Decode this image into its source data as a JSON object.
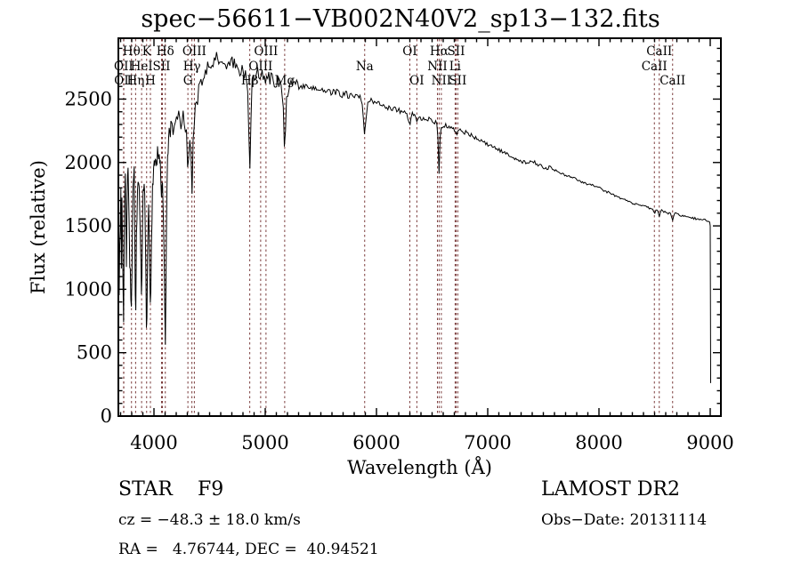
{
  "title": "spec−56611−VB002N40V2_sp13−132.fits",
  "axes": {
    "xlabel": "Wavelength (Å)",
    "ylabel": "Flux (relative)",
    "xticks": [
      4000,
      5000,
      6000,
      7000,
      8000,
      9000
    ],
    "yticks": [
      0,
      500,
      1000,
      1500,
      2000,
      2500
    ],
    "x_minor_step": 100,
    "y_minor_step": 100
  },
  "annotations": {
    "class_label": "STAR    F9",
    "survey": "LAMOST DR2",
    "cz": "cz = −48.3 ± 18.0 km/s",
    "obs_date": "Obs−Date: 20131114",
    "radec": "RA =   4.76744, DEC =  40.94521"
  },
  "colors": {
    "spectrum": "#000000",
    "line_marker": "#7b3c3c",
    "frame": "#000000",
    "background": "#ffffff"
  },
  "chart_data": {
    "type": "line",
    "title": "spec-56611-VB002N40V2_sp13-132.fits",
    "xlabel": "Wavelength (Å)",
    "ylabel": "Flux (relative)",
    "xlim": [
      3680,
      9096
    ],
    "ylim": [
      0,
      2980
    ],
    "grid": false,
    "spectral_lines": [
      {
        "label": "OII",
        "wavelength": 3727,
        "row": 2
      },
      {
        "label": "OII",
        "wavelength": 3729,
        "row": 3
      },
      {
        "label": "Hθ",
        "wavelength": 3798,
        "row": 1
      },
      {
        "label": "Hη",
        "wavelength": 3835,
        "row": 3
      },
      {
        "label": "HeI",
        "wavelength": 3889,
        "row": 2
      },
      {
        "label": "K",
        "wavelength": 3934,
        "row": 1
      },
      {
        "label": "H",
        "wavelength": 3968,
        "row": 3
      },
      {
        "label": "SII",
        "wavelength": 4068,
        "row": 2
      },
      {
        "label": "SII",
        "wavelength": 4076,
        "row": 2,
        "label_hidden": true
      },
      {
        "label": "Hδ",
        "wavelength": 4102,
        "row": 1
      },
      {
        "label": "G",
        "wavelength": 4305,
        "row": 3
      },
      {
        "label": "Hγ",
        "wavelength": 4341,
        "row": 2
      },
      {
        "label": "OIII",
        "wavelength": 4363,
        "row": 1
      },
      {
        "label": "Hβ",
        "wavelength": 4861,
        "row": 3
      },
      {
        "label": "OIII",
        "wavelength": 4959,
        "row": 2
      },
      {
        "label": "OIII",
        "wavelength": 5007,
        "row": 1
      },
      {
        "label": "Mg",
        "wavelength": 5175,
        "row": 3
      },
      {
        "label": "Na",
        "wavelength": 5894,
        "row": 2
      },
      {
        "label": "OI",
        "wavelength": 6300,
        "row": 1
      },
      {
        "label": "OI",
        "wavelength": 6363,
        "row": 3
      },
      {
        "label": "NII",
        "wavelength": 6548,
        "row": 2
      },
      {
        "label": "Hα",
        "wavelength": 6563,
        "row": 1
      },
      {
        "label": "NII",
        "wavelength": 6583,
        "row": 3
      },
      {
        "label": "Li",
        "wavelength": 6707,
        "row": 2
      },
      {
        "label": "SII",
        "wavelength": 6716,
        "row": 1
      },
      {
        "label": "SII",
        "wavelength": 6731,
        "row": 3
      },
      {
        "label": "CaII",
        "wavelength": 8498,
        "row": 2
      },
      {
        "label": "CaII",
        "wavelength": 8542,
        "row": 1
      },
      {
        "label": "CaII",
        "wavelength": 8662,
        "row": 3
      }
    ],
    "anchors": [
      [
        3682,
        1400
      ],
      [
        3686,
        700
      ],
      [
        3690,
        1600
      ],
      [
        3694,
        1000
      ],
      [
        3698,
        1650
      ],
      [
        3702,
        1800
      ],
      [
        3706,
        1000
      ],
      [
        3710,
        1600
      ],
      [
        3714,
        1850
      ],
      [
        3718,
        1250
      ],
      [
        3722,
        1000
      ],
      [
        3727,
        800
      ],
      [
        3732,
        1450
      ],
      [
        3738,
        1800
      ],
      [
        3744,
        1900
      ],
      [
        3752,
        1250
      ],
      [
        3760,
        1800
      ],
      [
        3770,
        1950
      ],
      [
        3780,
        1300
      ],
      [
        3790,
        1000
      ],
      [
        3798,
        750
      ],
      [
        3806,
        1500
      ],
      [
        3814,
        1850
      ],
      [
        3822,
        1900
      ],
      [
        3830,
        1100
      ],
      [
        3835,
        680
      ],
      [
        3842,
        1400
      ],
      [
        3850,
        1700
      ],
      [
        3858,
        1850
      ],
      [
        3866,
        1900
      ],
      [
        3874,
        1500
      ],
      [
        3882,
        1200
      ],
      [
        3889,
        950
      ],
      [
        3896,
        1500
      ],
      [
        3904,
        1800
      ],
      [
        3912,
        1900
      ],
      [
        3920,
        1600
      ],
      [
        3927,
        1100
      ],
      [
        3934,
        600
      ],
      [
        3942,
        1200
      ],
      [
        3950,
        1700
      ],
      [
        3958,
        1400
      ],
      [
        3963,
        1000
      ],
      [
        3968,
        820
      ],
      [
        3976,
        1300
      ],
      [
        3984,
        1700
      ],
      [
        3992,
        1850
      ],
      [
        4000,
        1950
      ],
      [
        4010,
        2050
      ],
      [
        4020,
        1980
      ],
      [
        4030,
        2100
      ],
      [
        4040,
        1950
      ],
      [
        4050,
        2050
      ],
      [
        4060,
        1900
      ],
      [
        4068,
        1750
      ],
      [
        4076,
        1800
      ],
      [
        4085,
        1600
      ],
      [
        4094,
        1100
      ],
      [
        4102,
        600
      ],
      [
        4110,
        1300
      ],
      [
        4118,
        1900
      ],
      [
        4126,
        2100
      ],
      [
        4135,
        2200
      ],
      [
        4145,
        2250
      ],
      [
        4155,
        2300
      ],
      [
        4170,
        2280
      ],
      [
        4185,
        2350
      ],
      [
        4200,
        2330
      ],
      [
        4215,
        2380
      ],
      [
        4230,
        2300
      ],
      [
        4245,
        2350
      ],
      [
        4260,
        2380
      ],
      [
        4275,
        2280
      ],
      [
        4290,
        2200
      ],
      [
        4298,
        2100
      ],
      [
        4305,
        1980
      ],
      [
        4315,
        2150
      ],
      [
        4325,
        2280
      ],
      [
        4333,
        2100
      ],
      [
        4341,
        1620
      ],
      [
        4350,
        2200
      ],
      [
        4358,
        2300
      ],
      [
        4363,
        2250
      ],
      [
        4372,
        2400
      ],
      [
        4382,
        2480
      ],
      [
        4395,
        2550
      ],
      [
        4410,
        2600
      ],
      [
        4430,
        2650
      ],
      [
        4450,
        2700
      ],
      [
        4475,
        2750
      ],
      [
        4500,
        2780
      ],
      [
        4530,
        2800
      ],
      [
        4560,
        2820
      ],
      [
        4590,
        2810
      ],
      [
        4620,
        2820
      ],
      [
        4650,
        2790
      ],
      [
        4680,
        2800
      ],
      [
        4710,
        2780
      ],
      [
        4740,
        2760
      ],
      [
        4770,
        2740
      ],
      [
        4800,
        2720
      ],
      [
        4820,
        2680
      ],
      [
        4840,
        2600
      ],
      [
        4852,
        2300
      ],
      [
        4861,
        1900
      ],
      [
        4872,
        2350
      ],
      [
        4880,
        2600
      ],
      [
        4895,
        2680
      ],
      [
        4910,
        2700
      ],
      [
        4925,
        2720
      ],
      [
        4940,
        2700
      ],
      [
        4959,
        2680
      ],
      [
        4975,
        2700
      ],
      [
        4990,
        2690
      ],
      [
        5007,
        2660
      ],
      [
        5025,
        2680
      ],
      [
        5045,
        2650
      ],
      [
        5065,
        2660
      ],
      [
        5085,
        2640
      ],
      [
        5105,
        2650
      ],
      [
        5125,
        2620
      ],
      [
        5145,
        2600
      ],
      [
        5160,
        2500
      ],
      [
        5175,
        2000
      ],
      [
        5190,
        2450
      ],
      [
        5205,
        2600
      ],
      [
        5225,
        2620
      ],
      [
        5250,
        2600
      ],
      [
        5275,
        2620
      ],
      [
        5300,
        2600
      ],
      [
        5330,
        2610
      ],
      [
        5360,
        2590
      ],
      [
        5390,
        2600
      ],
      [
        5420,
        2580
      ],
      [
        5450,
        2590
      ],
      [
        5480,
        2570
      ],
      [
        5510,
        2580
      ],
      [
        5540,
        2560
      ],
      [
        5570,
        2570
      ],
      [
        5600,
        2550
      ],
      [
        5640,
        2560
      ],
      [
        5680,
        2540
      ],
      [
        5720,
        2540
      ],
      [
        5760,
        2530
      ],
      [
        5800,
        2530
      ],
      [
        5840,
        2520
      ],
      [
        5870,
        2480
      ],
      [
        5894,
        2180
      ],
      [
        5915,
        2450
      ],
      [
        5940,
        2490
      ],
      [
        5970,
        2480
      ],
      [
        6000,
        2470
      ],
      [
        6040,
        2460
      ],
      [
        6080,
        2440
      ],
      [
        6120,
        2430
      ],
      [
        6160,
        2420
      ],
      [
        6200,
        2410
      ],
      [
        6240,
        2400
      ],
      [
        6270,
        2380
      ],
      [
        6300,
        2300
      ],
      [
        6320,
        2380
      ],
      [
        6340,
        2370
      ],
      [
        6363,
        2320
      ],
      [
        6385,
        2360
      ],
      [
        6410,
        2350
      ],
      [
        6440,
        2340
      ],
      [
        6470,
        2340
      ],
      [
        6500,
        2330
      ],
      [
        6525,
        2320
      ],
      [
        6545,
        2300
      ],
      [
        6556,
        2150
      ],
      [
        6563,
        1880
      ],
      [
        6572,
        2200
      ],
      [
        6583,
        2280
      ],
      [
        6600,
        2300
      ],
      [
        6625,
        2290
      ],
      [
        6650,
        2280
      ],
      [
        6675,
        2270
      ],
      [
        6700,
        2260
      ],
      [
        6716,
        2220
      ],
      [
        6731,
        2230
      ],
      [
        6750,
        2250
      ],
      [
        6780,
        2240
      ],
      [
        6810,
        2230
      ],
      [
        6840,
        2220
      ],
      [
        6870,
        2210
      ],
      [
        6900,
        2190
      ],
      [
        6930,
        2180
      ],
      [
        6960,
        2160
      ],
      [
        6990,
        2150
      ],
      [
        7020,
        2130
      ],
      [
        7060,
        2120
      ],
      [
        7100,
        2100
      ],
      [
        7140,
        2080
      ],
      [
        7180,
        2060
      ],
      [
        7220,
        2040
      ],
      [
        7260,
        2030
      ],
      [
        7300,
        2010
      ],
      [
        7340,
        2000
      ],
      [
        7380,
        2010
      ],
      [
        7420,
        2000
      ],
      [
        7460,
        1980
      ],
      [
        7500,
        1960
      ],
      [
        7540,
        1950
      ],
      [
        7560,
        1970
      ],
      [
        7580,
        1950
      ],
      [
        7620,
        1930
      ],
      [
        7660,
        1910
      ],
      [
        7700,
        1900
      ],
      [
        7740,
        1890
      ],
      [
        7780,
        1870
      ],
      [
        7820,
        1860
      ],
      [
        7860,
        1840
      ],
      [
        7900,
        1830
      ],
      [
        7940,
        1820
      ],
      [
        7980,
        1810
      ],
      [
        8020,
        1790
      ],
      [
        8060,
        1770
      ],
      [
        8100,
        1760
      ],
      [
        8140,
        1740
      ],
      [
        8180,
        1720
      ],
      [
        8220,
        1710
      ],
      [
        8260,
        1690
      ],
      [
        8300,
        1680
      ],
      [
        8340,
        1670
      ],
      [
        8380,
        1660
      ],
      [
        8420,
        1650
      ],
      [
        8460,
        1640
      ],
      [
        8490,
        1620
      ],
      [
        8498,
        1590
      ],
      [
        8510,
        1630
      ],
      [
        8530,
        1620
      ],
      [
        8542,
        1580
      ],
      [
        8560,
        1620
      ],
      [
        8590,
        1610
      ],
      [
        8620,
        1600
      ],
      [
        8640,
        1610
      ],
      [
        8662,
        1550
      ],
      [
        8680,
        1600
      ],
      [
        8710,
        1590
      ],
      [
        8740,
        1580
      ],
      [
        8770,
        1575
      ],
      [
        8800,
        1570
      ],
      [
        8830,
        1565
      ],
      [
        8860,
        1560
      ],
      [
        8890,
        1555
      ],
      [
        8920,
        1550
      ],
      [
        8950,
        1545
      ],
      [
        8975,
        1540
      ],
      [
        8995,
        1530
      ],
      [
        9000,
        1500
      ],
      [
        9002,
        800
      ],
      [
        9004,
        260
      ]
    ],
    "noise_profile": [
      [
        4400,
        85
      ],
      [
        5300,
        55
      ],
      [
        6000,
        28
      ],
      [
        6900,
        20
      ],
      [
        7800,
        14
      ],
      [
        9999,
        9
      ]
    ]
  }
}
